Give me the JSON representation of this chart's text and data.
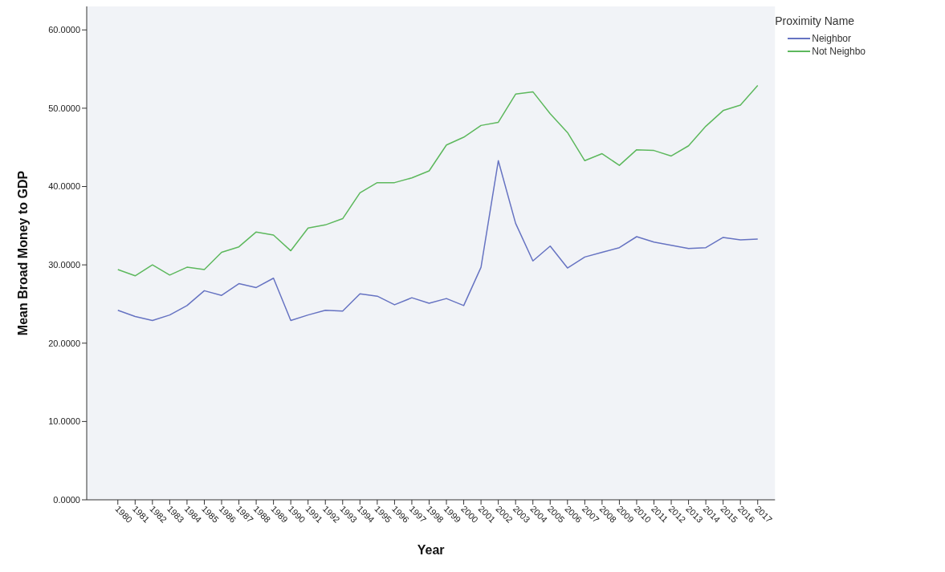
{
  "chart_data": {
    "type": "line",
    "xlabel": "Year",
    "ylabel": "Mean Broad Money to GDP",
    "legend_title": "Proximity Name",
    "legend": "top right",
    "grid": false,
    "marker": "none",
    "line_style": "solid",
    "categories": [
      "1980",
      "1981",
      "1982",
      "1983",
      "1984",
      "1985",
      "1986",
      "1987",
      "1988",
      "1989",
      "1990",
      "1991",
      "1992",
      "1993",
      "1994",
      "1995",
      "1996",
      "1997",
      "1998",
      "1999",
      "2000",
      "2001",
      "2002",
      "2003",
      "2004",
      "2005",
      "2006",
      "2007",
      "2008",
      "2009",
      "2010",
      "2011",
      "2012",
      "2013",
      "2014",
      "2015",
      "2016",
      "2017"
    ],
    "ylim": [
      0,
      63
    ],
    "yticks": [
      {
        "value": 0,
        "label": "0.0000"
      },
      {
        "value": 10,
        "label": "10.0000"
      },
      {
        "value": 20,
        "label": "20.0000"
      },
      {
        "value": 30,
        "label": "30.0000"
      },
      {
        "value": 40,
        "label": "40.0000"
      },
      {
        "value": 50,
        "label": "50.0000"
      },
      {
        "value": 60,
        "label": "60.0000"
      }
    ],
    "series": [
      {
        "name": "Neighbor",
        "color": "#6673c2",
        "values": [
          24.2,
          23.4,
          22.9,
          23.6,
          24.8,
          26.7,
          26.1,
          27.6,
          27.1,
          28.3,
          22.9,
          23.6,
          24.2,
          24.1,
          26.3,
          26.0,
          24.9,
          25.8,
          25.1,
          25.7,
          24.8,
          29.7,
          43.3,
          35.3,
          30.5,
          32.4,
          29.6,
          31.0,
          31.6,
          32.2,
          33.6,
          32.9,
          32.5,
          32.1,
          32.2,
          33.5,
          33.2,
          33.3
        ]
      },
      {
        "name": "Not Neighbo",
        "color": "#5db85d",
        "values": [
          29.4,
          28.6,
          30.0,
          28.7,
          29.7,
          29.4,
          31.6,
          32.3,
          34.2,
          33.8,
          31.8,
          34.7,
          35.1,
          35.9,
          39.2,
          40.5,
          40.5,
          41.1,
          42.0,
          45.3,
          46.3,
          47.8,
          48.2,
          51.8,
          52.1,
          49.3,
          46.9,
          43.3,
          44.2,
          42.7,
          44.7,
          44.6,
          43.9,
          45.2,
          47.7,
          49.7,
          50.4,
          52.9
        ]
      }
    ]
  }
}
